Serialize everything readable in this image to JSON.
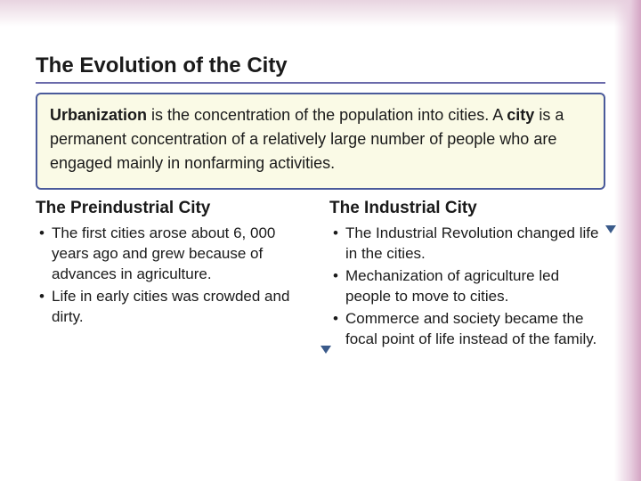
{
  "title": "The Evolution of the City",
  "definition": {
    "term1": "Urbanization",
    "text1": " is the concentration of the population into cities. A ",
    "term2": "city",
    "text2": " is a permanent concentration of a relatively large number of people who are engaged mainly in nonfarming activities."
  },
  "left": {
    "heading": "The Preindustrial City",
    "bullets": [
      "The first cities arose about 6, 000 years ago and grew because of advances in agriculture.",
      "Life in early cities was crowded and dirty."
    ]
  },
  "right": {
    "heading": "The Industrial City",
    "bullets": [
      "The Industrial Revolution changed life in the cities.",
      "Mechanization of agriculture led people to move to cities.",
      "Commerce and society became the focal point of life instead of the family."
    ]
  },
  "colors": {
    "border": "#4a5a9a",
    "defbox_bg": "#fafae6",
    "underline": "#6a6aaa",
    "arrow": "#3a5a8a",
    "gradient": "#d4a5c4"
  }
}
